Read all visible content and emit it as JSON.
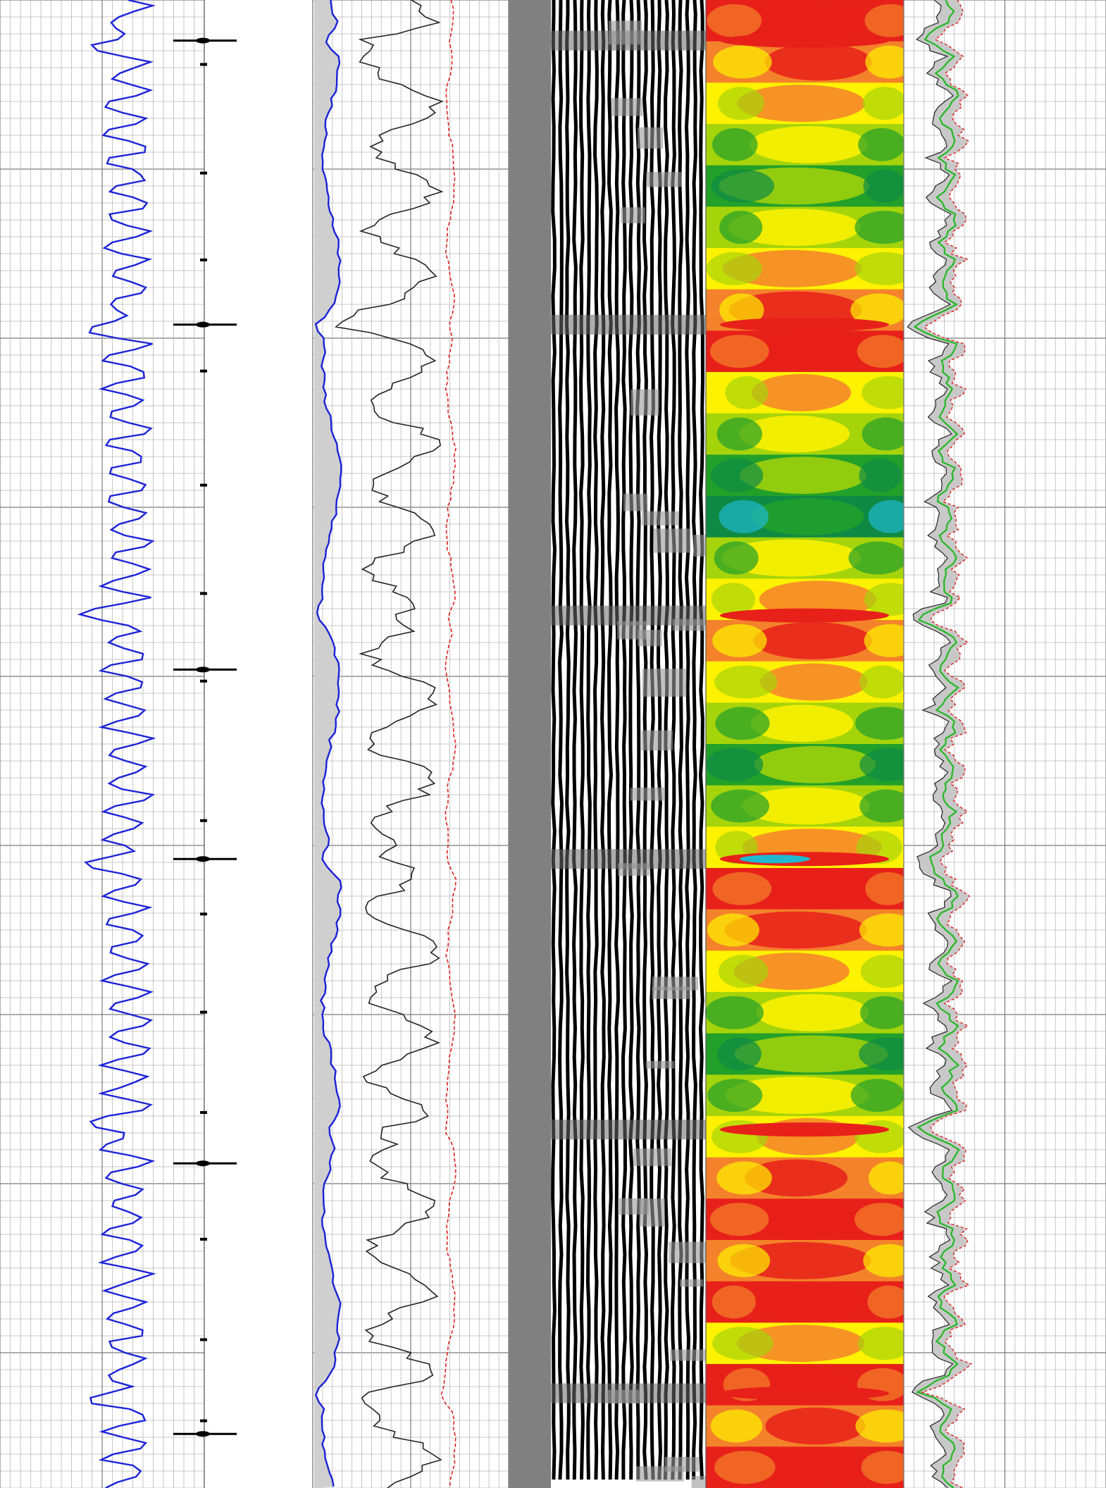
{
  "chart_data": {
    "type": "line",
    "title": "",
    "y_axis": {
      "label": "",
      "unit": "",
      "direction": "increasing-downward",
      "range": [
        4210,
        4430
      ],
      "ticks": [
        4300,
        4400
      ]
    },
    "tracks": [
      {
        "name": "",
        "content": "curve",
        "color": "#1b22d8",
        "grid": "linear"
      },
      {
        "name": "",
        "content": "depth",
        "grid": "none"
      },
      {
        "name": "",
        "content": "curves",
        "series": [
          {
            "name": "",
            "color": "#1b22d8",
            "style": "solid"
          },
          {
            "name": "",
            "color": "#222222",
            "style": "solid"
          },
          {
            "name": "",
            "color": "#e02020",
            "style": "dashed"
          }
        ]
      },
      {
        "name": "",
        "content": "waveform-variable-density",
        "colors": [
          "#000000",
          "#ffffff",
          "#808080"
        ]
      },
      {
        "name": "",
        "content": "color-map",
        "colors": [
          "#e8201a",
          "#f4822a",
          "#fef200",
          "#a6d40a",
          "#22a02a",
          "#0e8a44",
          "#20b8d0"
        ]
      },
      {
        "name": "",
        "content": "curves",
        "series": [
          {
            "name": "",
            "color": "#22b822",
            "style": "solid"
          },
          {
            "name": "",
            "color": "#e02020",
            "style": "dashed"
          },
          {
            "name": "",
            "color": "#222222",
            "style": "solid"
          }
        ]
      }
    ],
    "markers_depths": [
      4216,
      4258,
      4309,
      4337,
      4382,
      4422
    ],
    "event_depths": [
      4216,
      4258,
      4301,
      4337,
      4377,
      4416
    ]
  }
}
